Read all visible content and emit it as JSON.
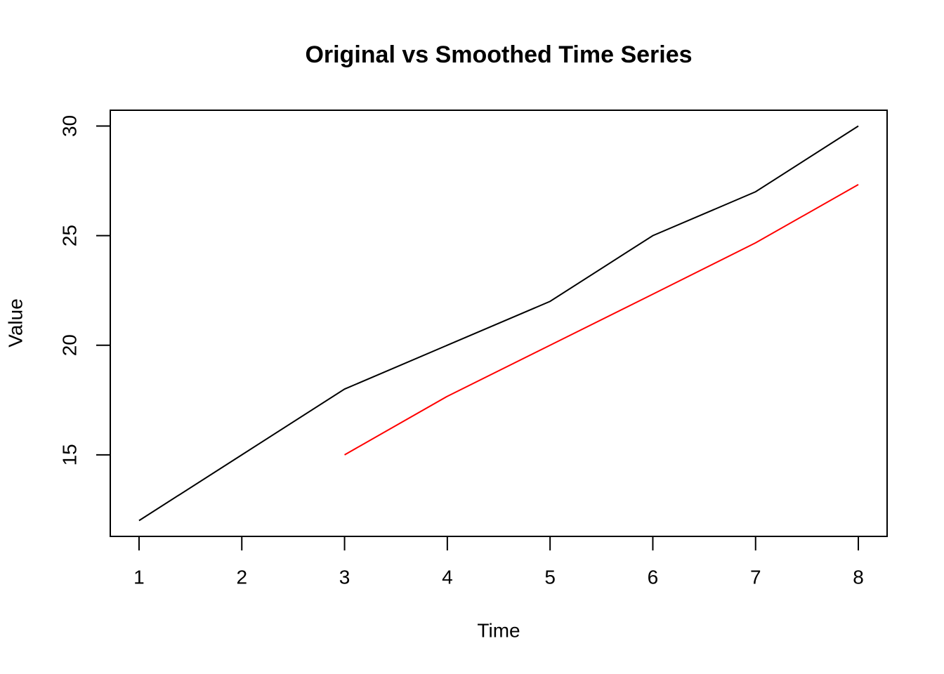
{
  "chart_data": {
    "type": "line",
    "title": "Original vs Smoothed Time Series",
    "x_label": "Time",
    "y_label": "Value",
    "x": [
      1,
      2,
      3,
      4,
      5,
      6,
      7,
      8
    ],
    "series": [
      {
        "color": "#000000",
        "values": [
          12,
          15,
          18,
          20,
          22,
          25,
          27,
          30
        ]
      },
      {
        "color": "#ff0000",
        "values": [
          null,
          null,
          15,
          17.67,
          20,
          22.33,
          24.67,
          27.33
        ]
      }
    ],
    "xlim": [
      0.72,
      8.28
    ],
    "xticks": [
      1,
      2,
      3,
      4,
      5,
      6,
      7,
      8
    ],
    "ylim": [
      11.28,
      30.72
    ],
    "yticks": [
      15,
      20,
      25,
      30
    ],
    "grid": false
  }
}
